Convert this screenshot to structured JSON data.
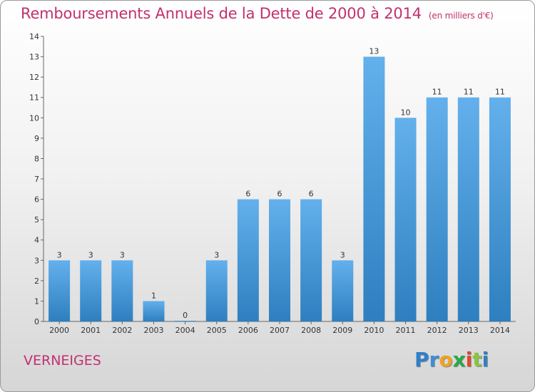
{
  "title": "Remboursements Annuels de la Dette de 2000 à 2014",
  "unit": "(en milliers d'€)",
  "commune": "VERNEIGES",
  "logo": {
    "letters": [
      "P",
      "r",
      "o",
      "x",
      "i",
      "t",
      "i"
    ],
    "colors": [
      "#2f7fc8",
      "#3b8ed8",
      "#f0a224",
      "#2aa84a",
      "#e04a2a",
      "#8bc53f",
      "#2f7fc8"
    ]
  },
  "colors": {
    "bar_top": "#63b0ec",
    "bar_bottom": "#2e7fbf",
    "title": "#c2306e",
    "axis": "#666666"
  },
  "chart_data": {
    "type": "bar",
    "categories": [
      "2000",
      "2001",
      "2002",
      "2003",
      "2004",
      "2005",
      "2006",
      "2007",
      "2008",
      "2009",
      "2010",
      "2011",
      "2012",
      "2013",
      "2014"
    ],
    "values": [
      3,
      3,
      3,
      1,
      0,
      3,
      6,
      6,
      6,
      3,
      13,
      10,
      11,
      11,
      11
    ],
    "ylim": [
      0,
      14
    ],
    "yticks": [
      0,
      1,
      2,
      3,
      4,
      5,
      6,
      7,
      8,
      9,
      10,
      11,
      12,
      13,
      14
    ],
    "xlabel": "",
    "ylabel": "",
    "grid": false,
    "data_labels": true
  }
}
